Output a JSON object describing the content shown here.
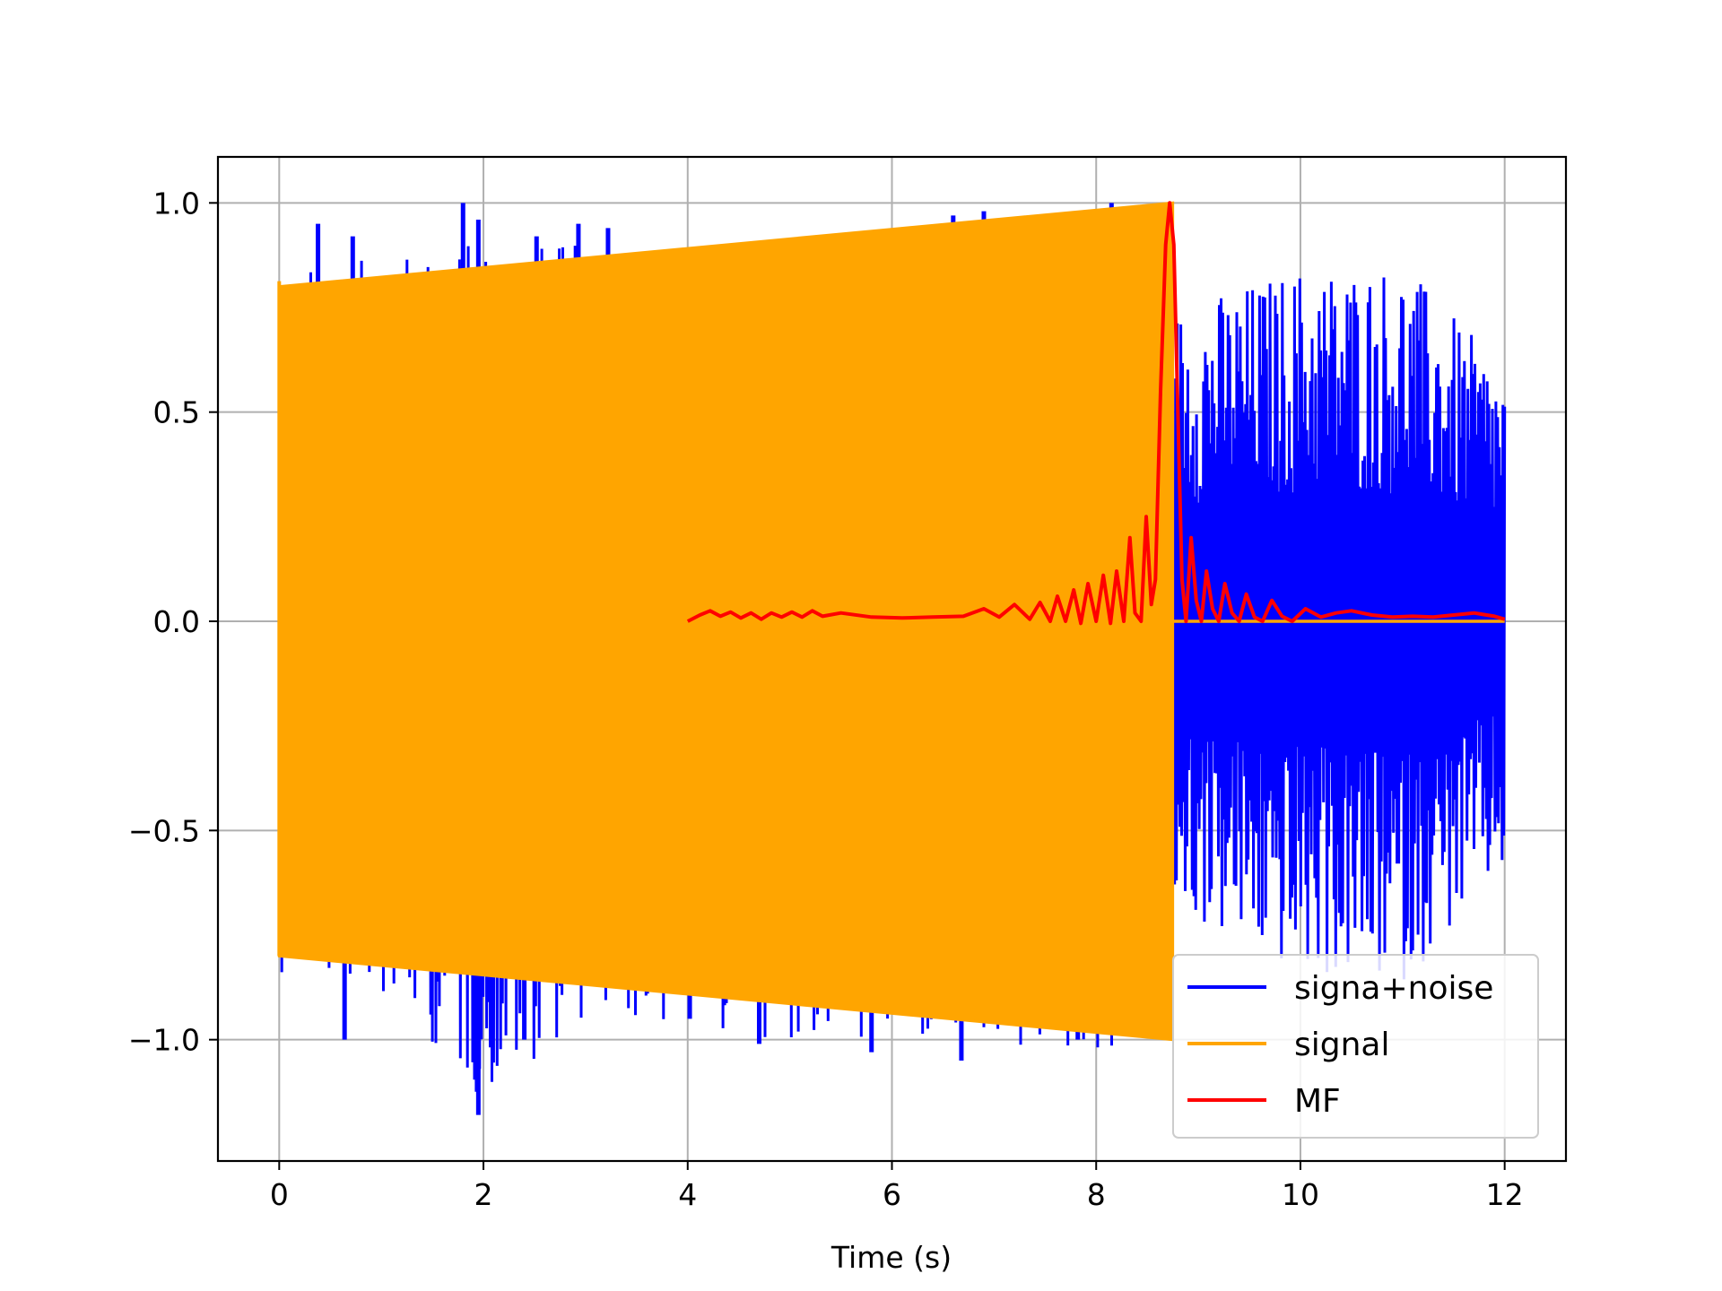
{
  "chart_data": {
    "type": "line",
    "xlabel": "Time (s)",
    "ylabel": "",
    "title": "",
    "xlim": [
      -0.6,
      12.6
    ],
    "ylim": [
      -1.29,
      1.11
    ],
    "x_ticks": [
      {
        "value": 0,
        "label": "0"
      },
      {
        "value": 2,
        "label": "2"
      },
      {
        "value": 4,
        "label": "4"
      },
      {
        "value": 6,
        "label": "6"
      },
      {
        "value": 8,
        "label": "8"
      },
      {
        "value": 10,
        "label": "10"
      },
      {
        "value": 12,
        "label": "12"
      }
    ],
    "y_ticks": [
      {
        "value": 1.0,
        "label": "1.0"
      },
      {
        "value": 0.5,
        "label": "0.5"
      },
      {
        "value": 0.0,
        "label": "0.0"
      },
      {
        "value": -0.5,
        "label": "−0.5"
      },
      {
        "value": -1.0,
        "label": "−1.0"
      }
    ],
    "grid": true,
    "legend_position": "bottom-right",
    "series": [
      {
        "name": "signa+noise",
        "color": "#0000ff",
        "description_range": {
          "x_start": 0,
          "x_end": 12
        },
        "envelope": {
          "x": [
            0,
            1,
            2,
            3,
            4,
            5,
            6,
            7,
            8,
            8.75,
            8.76,
            10,
            11,
            12
          ],
          "upper": [
            0.84,
            0.87,
            0.92,
            0.9,
            0.88,
            0.9,
            0.92,
            0.95,
            0.98,
            1.0,
            0.75,
            0.85,
            0.86,
            0.6
          ],
          "lower": [
            -0.84,
            -0.88,
            -1.15,
            -0.95,
            -0.98,
            -1.0,
            -1.02,
            -1.04,
            -1.04,
            -1.0,
            -0.7,
            -0.85,
            -0.87,
            -0.6
          ]
        },
        "spikes": [
          {
            "x": 0.38,
            "y": 0.95
          },
          {
            "x": 0.72,
            "y": 0.92
          },
          {
            "x": 1.8,
            "y": 1.0
          },
          {
            "x": 1.95,
            "y": 0.96
          },
          {
            "x": 2.52,
            "y": 0.92
          },
          {
            "x": 2.93,
            "y": 0.95
          },
          {
            "x": 3.22,
            "y": 0.94
          },
          {
            "x": 3.8,
            "y": 0.88
          },
          {
            "x": 6.6,
            "y": 0.97
          },
          {
            "x": 6.9,
            "y": 0.98
          },
          {
            "x": 8.15,
            "y": 1.0
          },
          {
            "x": 0.64,
            "y": -1.0
          },
          {
            "x": 1.95,
            "y": -1.18
          },
          {
            "x": 2.4,
            "y": -1.0
          },
          {
            "x": 4.02,
            "y": -0.95
          },
          {
            "x": 4.7,
            "y": -1.01
          },
          {
            "x": 5.8,
            "y": -1.03
          },
          {
            "x": 6.68,
            "y": -1.05
          },
          {
            "x": 7.82,
            "y": -1.0
          }
        ]
      },
      {
        "name": "signal",
        "color": "#ffa500",
        "segments": [
          {
            "x_start": 0,
            "x_end": 8.75,
            "upper_start": 0.8,
            "upper_end": 1.0,
            "lower_start": -0.8,
            "lower_end": -1.0
          },
          {
            "x_start": 8.75,
            "x_end": 12,
            "value": 0.0
          }
        ]
      },
      {
        "name": "MF",
        "color": "#ff0000",
        "x": [
          4.0,
          4.12,
          4.22,
          4.32,
          4.42,
          4.52,
          4.62,
          4.72,
          4.82,
          4.92,
          5.02,
          5.12,
          5.22,
          5.32,
          5.5,
          5.8,
          6.1,
          6.4,
          6.7,
          6.9,
          7.05,
          7.2,
          7.35,
          7.45,
          7.55,
          7.62,
          7.7,
          7.78,
          7.85,
          7.92,
          8.0,
          8.07,
          8.14,
          8.2,
          8.27,
          8.33,
          8.38,
          8.44,
          8.49,
          8.54,
          8.58,
          8.63,
          8.68,
          8.72,
          8.76,
          8.8,
          8.84,
          8.88,
          8.93,
          8.98,
          9.03,
          9.08,
          9.14,
          9.2,
          9.26,
          9.33,
          9.4,
          9.47,
          9.55,
          9.63,
          9.72,
          9.82,
          9.92,
          10.05,
          10.2,
          10.35,
          10.5,
          10.7,
          10.9,
          11.1,
          11.3,
          11.5,
          11.7,
          11.9,
          12.0
        ],
        "y": [
          0.0,
          0.015,
          0.025,
          0.012,
          0.022,
          0.008,
          0.02,
          0.005,
          0.02,
          0.01,
          0.022,
          0.01,
          0.025,
          0.012,
          0.02,
          0.01,
          0.008,
          0.01,
          0.012,
          0.03,
          0.01,
          0.04,
          0.005,
          0.045,
          0.0,
          0.06,
          0.0,
          0.075,
          -0.005,
          0.09,
          0.0,
          0.11,
          -0.005,
          0.12,
          0.0,
          0.2,
          0.02,
          0.0,
          0.25,
          0.04,
          0.1,
          0.55,
          0.9,
          1.0,
          0.9,
          0.5,
          0.1,
          0.0,
          0.2,
          0.05,
          0.0,
          0.12,
          0.03,
          0.0,
          0.09,
          0.02,
          0.0,
          0.065,
          0.01,
          0.0,
          0.05,
          0.012,
          0.0,
          0.03,
          0.01,
          0.02,
          0.025,
          0.015,
          0.01,
          0.012,
          0.01,
          0.015,
          0.02,
          0.012,
          0.005
        ]
      }
    ]
  }
}
